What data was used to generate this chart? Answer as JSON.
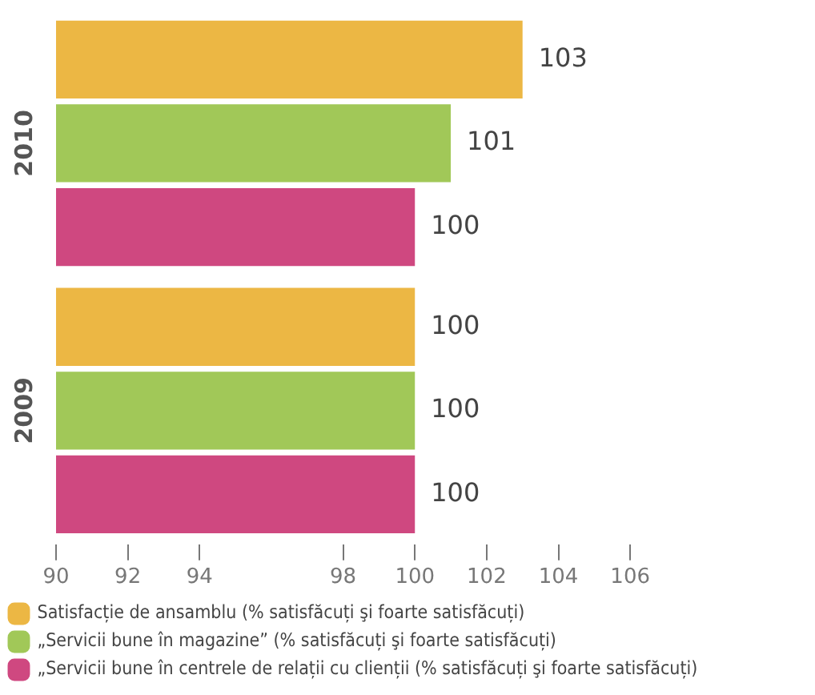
{
  "chart_data": {
    "type": "bar",
    "orientation": "horizontal",
    "categories": [
      "2010",
      "2009"
    ],
    "series": [
      {
        "name": "Satisfacție de ansamblu (% satisfăcuți şi foarte satisfăcuți)",
        "color": "#ecb744",
        "values": [
          103,
          100
        ]
      },
      {
        "name": "„Servicii bune în magazine” (% satisfăcuți şi foarte satisfăcuți)",
        "color": "#a1c858",
        "values": [
          101,
          100
        ]
      },
      {
        "name": "„Servicii bune în centrele de relații cu clienții (% satisfăcuți şi foarte satisfăcuți)",
        "color": "#cf4880",
        "values": [
          100,
          100
        ]
      }
    ],
    "xlim": [
      90,
      106
    ],
    "xticks": [
      90,
      92,
      94,
      98,
      100,
      102,
      104,
      106
    ],
    "data_labels": true,
    "legend": "bottom"
  }
}
